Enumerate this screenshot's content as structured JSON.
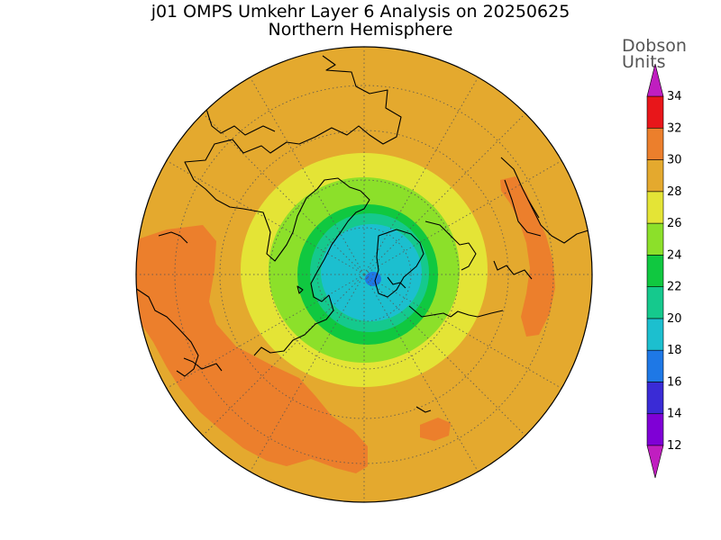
{
  "title": "j01 OMPS Umkehr Layer 6 Analysis on 20250625",
  "subtitle": "Northern Hemisphere",
  "units": {
    "line1": "Dobson",
    "line2": "Units"
  },
  "colorbar": {
    "levels": [
      12,
      14,
      16,
      18,
      20,
      22,
      24,
      26,
      28,
      30,
      32,
      34
    ],
    "labels": [
      "12",
      "14",
      "16",
      "18",
      "20",
      "22",
      "24",
      "26",
      "28",
      "30",
      "32",
      "34"
    ],
    "colors": [
      "#7f00d6",
      "#3a2bd6",
      "#1e78e6",
      "#1cbfcf",
      "#15c98d",
      "#10c840",
      "#8ce02a",
      "#e4e436",
      "#e4a92e",
      "#ec7f2c",
      "#e8161a"
    ],
    "under_color": "#c01ec0",
    "over_color": "#c01ec0"
  },
  "colors": {
    "land_outline": "#000000",
    "grid": "#666666",
    "background_field": "#e4a92e"
  }
}
